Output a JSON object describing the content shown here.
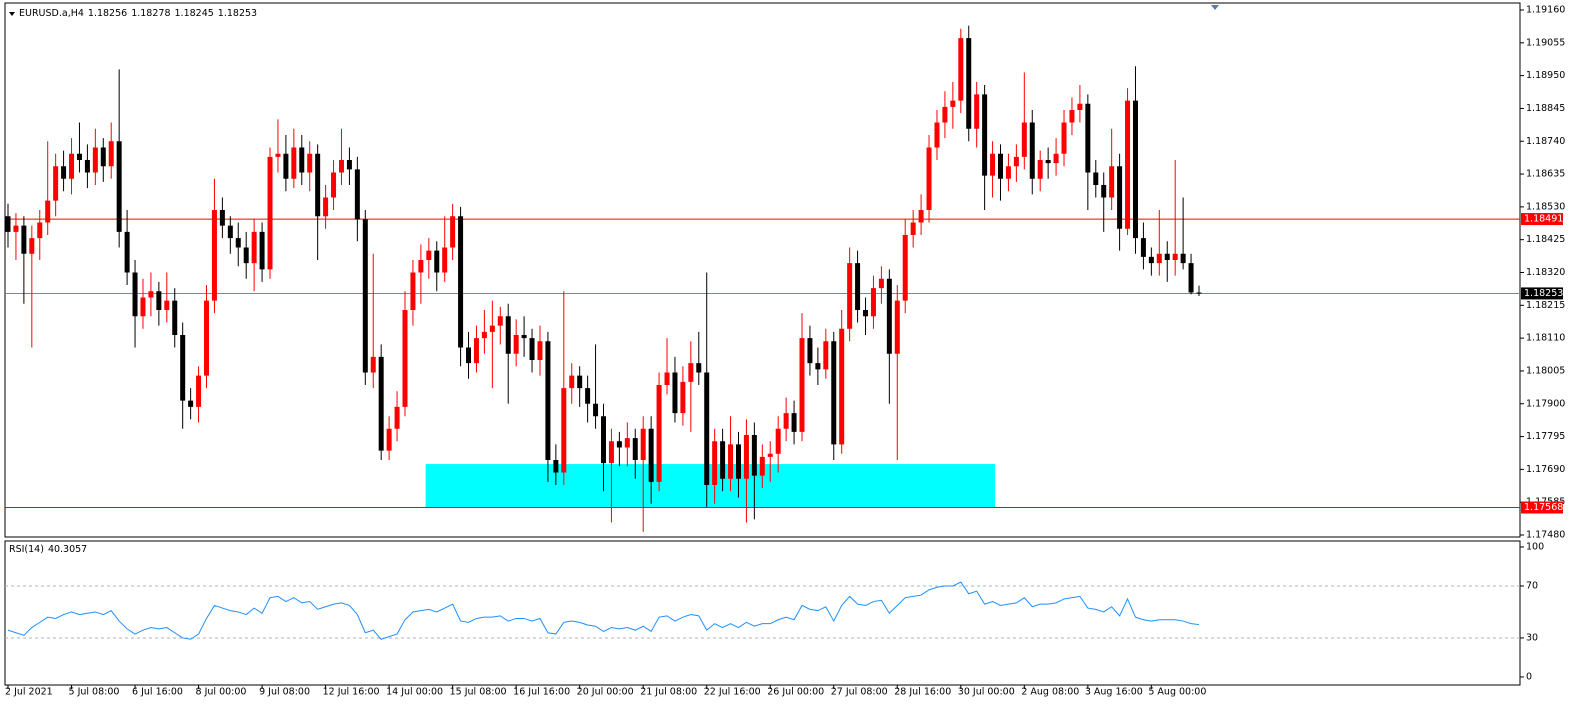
{
  "chart_data": {
    "type": "candlestick",
    "symbol": "EURUSD.a,H4",
    "up_color": "#ff0000",
    "down_color": "#000000",
    "candles": [
      [
        1.185,
        1.1854,
        1.184,
        1.1845
      ],
      [
        1.1845,
        1.1851,
        1.1836,
        1.1847
      ],
      [
        1.1847,
        1.185,
        1.1822,
        1.1838
      ],
      [
        1.1838,
        1.1847,
        1.1808,
        1.1843
      ],
      [
        1.1843,
        1.1852,
        1.1836,
        1.1848
      ],
      [
        1.1848,
        1.1874,
        1.1844,
        1.1855
      ],
      [
        1.1855,
        1.187,
        1.185,
        1.1866
      ],
      [
        1.1866,
        1.1871,
        1.1858,
        1.1862
      ],
      [
        1.1862,
        1.1875,
        1.1857,
        1.187
      ],
      [
        1.187,
        1.188,
        1.1864,
        1.1868
      ],
      [
        1.1868,
        1.1873,
        1.1859,
        1.1864
      ],
      [
        1.1864,
        1.1878,
        1.186,
        1.1872
      ],
      [
        1.1872,
        1.1875,
        1.1861,
        1.1866
      ],
      [
        1.1866,
        1.188,
        1.1862,
        1.1874
      ],
      [
        1.1874,
        1.1897,
        1.184,
        1.1845
      ],
      [
        1.1845,
        1.1852,
        1.1828,
        1.1832
      ],
      [
        1.1832,
        1.1836,
        1.1808,
        1.1818
      ],
      [
        1.1818,
        1.183,
        1.1814,
        1.1824
      ],
      [
        1.1824,
        1.1832,
        1.1818,
        1.1826
      ],
      [
        1.1826,
        1.1829,
        1.1815,
        1.182
      ],
      [
        1.182,
        1.1832,
        1.1816,
        1.1823
      ],
      [
        1.1823,
        1.1827,
        1.1808,
        1.1812
      ],
      [
        1.1812,
        1.1816,
        1.1782,
        1.1791
      ],
      [
        1.1791,
        1.1795,
        1.1785,
        1.1789
      ],
      [
        1.1789,
        1.1802,
        1.1784,
        1.1799
      ],
      [
        1.1799,
        1.1828,
        1.1795,
        1.1823
      ],
      [
        1.1823,
        1.1862,
        1.1819,
        1.1852
      ],
      [
        1.1852,
        1.1856,
        1.1843,
        1.1847
      ],
      [
        1.1847,
        1.185,
        1.1838,
        1.1843
      ],
      [
        1.1843,
        1.1848,
        1.1834,
        1.184
      ],
      [
        1.184,
        1.1845,
        1.183,
        1.1835
      ],
      [
        1.1835,
        1.1849,
        1.1826,
        1.1845
      ],
      [
        1.1845,
        1.1848,
        1.1829,
        1.1833
      ],
      [
        1.1833,
        1.1872,
        1.183,
        1.1869
      ],
      [
        1.1869,
        1.1881,
        1.1864,
        1.187
      ],
      [
        1.187,
        1.1876,
        1.1858,
        1.1862
      ],
      [
        1.1862,
        1.1878,
        1.1859,
        1.1872
      ],
      [
        1.1872,
        1.1876,
        1.186,
        1.1864
      ],
      [
        1.1864,
        1.1874,
        1.1858,
        1.187
      ],
      [
        1.187,
        1.1873,
        1.1836,
        1.185
      ],
      [
        1.185,
        1.186,
        1.1846,
        1.1856
      ],
      [
        1.1856,
        1.1868,
        1.1852,
        1.1864
      ],
      [
        1.1864,
        1.1878,
        1.186,
        1.1868
      ],
      [
        1.1868,
        1.1872,
        1.186,
        1.1865
      ],
      [
        1.1865,
        1.1869,
        1.1842,
        1.1849
      ],
      [
        1.1849,
        1.1852,
        1.1796,
        1.18
      ],
      [
        1.18,
        1.1838,
        1.1795,
        1.1805
      ],
      [
        1.1805,
        1.1809,
        1.1772,
        1.1775
      ],
      [
        1.1775,
        1.1786,
        1.1772,
        1.1782
      ],
      [
        1.1782,
        1.1794,
        1.1778,
        1.1789
      ],
      [
        1.1789,
        1.1826,
        1.1786,
        1.182
      ],
      [
        1.182,
        1.1836,
        1.1815,
        1.1832
      ],
      [
        1.1832,
        1.1841,
        1.1822,
        1.1836
      ],
      [
        1.1836,
        1.1843,
        1.183,
        1.1839
      ],
      [
        1.1839,
        1.1842,
        1.1826,
        1.1832
      ],
      [
        1.1832,
        1.185,
        1.1829,
        1.184
      ],
      [
        1.184,
        1.1854,
        1.1836,
        1.185
      ],
      [
        1.185,
        1.1853,
        1.1802,
        1.1808
      ],
      [
        1.1808,
        1.1813,
        1.1798,
        1.1803
      ],
      [
        1.1803,
        1.1815,
        1.18,
        1.1811
      ],
      [
        1.1811,
        1.182,
        1.1806,
        1.1813
      ],
      [
        1.1813,
        1.1823,
        1.1795,
        1.1815
      ],
      [
        1.1815,
        1.1821,
        1.1809,
        1.1818
      ],
      [
        1.1818,
        1.1822,
        1.179,
        1.1806
      ],
      [
        1.1806,
        1.1817,
        1.1802,
        1.1812
      ],
      [
        1.1812,
        1.1818,
        1.1805,
        1.1811
      ],
      [
        1.1811,
        1.1814,
        1.18,
        1.1804
      ],
      [
        1.1804,
        1.1815,
        1.1799,
        1.181
      ],
      [
        1.181,
        1.1813,
        1.1765,
        1.1772
      ],
      [
        1.1772,
        1.1777,
        1.1764,
        1.1768
      ],
      [
        1.1768,
        1.1826,
        1.1764,
        1.1795
      ],
      [
        1.1795,
        1.1803,
        1.179,
        1.1799
      ],
      [
        1.1799,
        1.1802,
        1.1789,
        1.1795
      ],
      [
        1.1795,
        1.1799,
        1.1784,
        1.179
      ],
      [
        1.179,
        1.1809,
        1.1782,
        1.1786
      ],
      [
        1.1786,
        1.179,
        1.1762,
        1.1771
      ],
      [
        1.1771,
        1.1782,
        1.1752,
        1.1778
      ],
      [
        1.1778,
        1.1781,
        1.177,
        1.1776
      ],
      [
        1.1776,
        1.1784,
        1.177,
        1.1779
      ],
      [
        1.1779,
        1.1782,
        1.1766,
        1.1772
      ],
      [
        1.1772,
        1.1786,
        1.1749,
        1.1782
      ],
      [
        1.1782,
        1.1786,
        1.1758,
        1.1765
      ],
      [
        1.1765,
        1.18,
        1.1762,
        1.1796
      ],
      [
        1.1796,
        1.1811,
        1.1793,
        1.18
      ],
      [
        1.18,
        1.1805,
        1.1784,
        1.1787
      ],
      [
        1.1787,
        1.1802,
        1.1783,
        1.1797
      ],
      [
        1.1797,
        1.181,
        1.1781,
        1.1803
      ],
      [
        1.1803,
        1.1813,
        1.1796,
        1.18
      ],
      [
        1.18,
        1.1832,
        1.1757,
        1.1764
      ],
      [
        1.1764,
        1.1782,
        1.1758,
        1.1778
      ],
      [
        1.1778,
        1.1782,
        1.1762,
        1.1766
      ],
      [
        1.1766,
        1.1786,
        1.1762,
        1.1777
      ],
      [
        1.1777,
        1.1781,
        1.176,
        1.1766
      ],
      [
        1.1766,
        1.1785,
        1.1752,
        1.178
      ],
      [
        1.178,
        1.1784,
        1.1753,
        1.1767
      ],
      [
        1.1767,
        1.1777,
        1.1763,
        1.1773
      ],
      [
        1.1773,
        1.1778,
        1.1765,
        1.1774
      ],
      [
        1.1774,
        1.1786,
        1.1768,
        1.1782
      ],
      [
        1.1782,
        1.1792,
        1.1778,
        1.1787
      ],
      [
        1.1787,
        1.1791,
        1.1777,
        1.1781
      ],
      [
        1.1781,
        1.1819,
        1.1778,
        1.1811
      ],
      [
        1.1811,
        1.1815,
        1.1799,
        1.1803
      ],
      [
        1.1803,
        1.1808,
        1.1796,
        1.1801
      ],
      [
        1.1801,
        1.1814,
        1.1798,
        1.181
      ],
      [
        1.181,
        1.1813,
        1.1772,
        1.1777
      ],
      [
        1.1777,
        1.182,
        1.1774,
        1.1814
      ],
      [
        1.1814,
        1.184,
        1.181,
        1.1835
      ],
      [
        1.1835,
        1.1839,
        1.1816,
        1.182
      ],
      [
        1.182,
        1.1824,
        1.1812,
        1.1818
      ],
      [
        1.1818,
        1.1831,
        1.1814,
        1.1827
      ],
      [
        1.1827,
        1.1834,
        1.1822,
        1.183
      ],
      [
        1.183,
        1.1833,
        1.179,
        1.1806
      ],
      [
        1.1806,
        1.1828,
        1.1772,
        1.1823
      ],
      [
        1.1823,
        1.1849,
        1.1819,
        1.1844
      ],
      [
        1.1844,
        1.1852,
        1.184,
        1.1848
      ],
      [
        1.1848,
        1.1857,
        1.1844,
        1.1852
      ],
      [
        1.1852,
        1.1876,
        1.1848,
        1.1872
      ],
      [
        1.1872,
        1.1884,
        1.1868,
        1.188
      ],
      [
        1.188,
        1.189,
        1.1875,
        1.1885
      ],
      [
        1.1885,
        1.1893,
        1.1878,
        1.1887
      ],
      [
        1.1887,
        1.191,
        1.1883,
        1.1907
      ],
      [
        1.1907,
        1.1911,
        1.1874,
        1.1878
      ],
      [
        1.1878,
        1.1893,
        1.1872,
        1.1889
      ],
      [
        1.1889,
        1.1892,
        1.1852,
        1.1863
      ],
      [
        1.1863,
        1.1874,
        1.1856,
        1.187
      ],
      [
        1.187,
        1.1873,
        1.1855,
        1.1862
      ],
      [
        1.1862,
        1.187,
        1.1858,
        1.1866
      ],
      [
        1.1866,
        1.1873,
        1.1861,
        1.1869
      ],
      [
        1.1869,
        1.1896,
        1.1865,
        1.188
      ],
      [
        1.188,
        1.1884,
        1.1857,
        1.1862
      ],
      [
        1.1862,
        1.1871,
        1.1858,
        1.1868
      ],
      [
        1.1868,
        1.1872,
        1.1862,
        1.1867
      ],
      [
        1.1867,
        1.1875,
        1.1863,
        1.187
      ],
      [
        1.187,
        1.1884,
        1.1866,
        1.188
      ],
      [
        1.188,
        1.1888,
        1.1876,
        1.1884
      ],
      [
        1.1884,
        1.1892,
        1.188,
        1.1886
      ],
      [
        1.1886,
        1.1889,
        1.1852,
        1.1864
      ],
      [
        1.1864,
        1.1868,
        1.1856,
        1.186
      ],
      [
        1.186,
        1.1864,
        1.1845,
        1.1856
      ],
      [
        1.1856,
        1.1878,
        1.1852,
        1.1866
      ],
      [
        1.1866,
        1.187,
        1.1839,
        1.1846
      ],
      [
        1.1846,
        1.1891,
        1.1844,
        1.1887
      ],
      [
        1.1887,
        1.1898,
        1.1838,
        1.1843
      ],
      [
        1.1843,
        1.1848,
        1.1833,
        1.1837
      ],
      [
        1.1837,
        1.184,
        1.1831,
        1.1835
      ],
      [
        1.1835,
        1.1852,
        1.1831,
        1.1838
      ],
      [
        1.1838,
        1.1842,
        1.1829,
        1.1836
      ],
      [
        1.1836,
        1.1868,
        1.1831,
        1.1838
      ],
      [
        1.1838,
        1.1856,
        1.1833,
        1.1835
      ],
      [
        1.1835,
        1.1838,
        1.1825,
        1.18256
      ],
      [
        1.18256,
        1.18278,
        1.18245,
        1.18253
      ]
    ],
    "ylim": [
      1.174736,
      1.19176
    ],
    "yticks": [
      {
        "value": 1.1748,
        "label": "1.17480"
      },
      {
        "value": 1.17585,
        "label": "1.17585"
      },
      {
        "value": 1.1769,
        "label": "1.17690"
      },
      {
        "value": 1.17795,
        "label": "1.17795"
      },
      {
        "value": 1.179,
        "label": "1.17900"
      },
      {
        "value": 1.18005,
        "label": "1.18005"
      },
      {
        "value": 1.1811,
        "label": "1.18110"
      },
      {
        "value": 1.18215,
        "label": "1.18215"
      },
      {
        "value": 1.1832,
        "label": "1.18320"
      },
      {
        "value": 1.18425,
        "label": "1.18425"
      },
      {
        "value": 1.1853,
        "label": "1.18530"
      },
      {
        "value": 1.18635,
        "label": "1.18635"
      },
      {
        "value": 1.1874,
        "label": "1.18740"
      },
      {
        "value": 1.18845,
        "label": "1.18845"
      },
      {
        "value": 1.1895,
        "label": "1.18950"
      },
      {
        "value": 1.19055,
        "label": "1.19055"
      },
      {
        "value": 1.1916,
        "label": "1.19160"
      }
    ],
    "xticks": [
      {
        "value": 0,
        "label": "2 Jul 2021"
      },
      {
        "value": 8,
        "label": "5 Jul 08:00"
      },
      {
        "value": 16,
        "label": "6 Jul 16:00"
      },
      {
        "value": 24,
        "label": "8 Jul 00:00"
      },
      {
        "value": 32,
        "label": "9 Jul 08:00"
      },
      {
        "value": 40,
        "label": "12 Jul 16:00"
      },
      {
        "value": 48,
        "label": "14 Jul 00:00"
      },
      {
        "value": 56,
        "label": "15 Jul 08:00"
      },
      {
        "value": 64,
        "label": "16 Jul 16:00"
      },
      {
        "value": 72,
        "label": "20 Jul 00:00"
      },
      {
        "value": 80,
        "label": "21 Jul 08:00"
      },
      {
        "value": 88,
        "label": "22 Jul 16:00"
      },
      {
        "value": 96,
        "label": "26 Jul 00:00"
      },
      {
        "value": 104,
        "label": "27 Jul 08:00"
      },
      {
        "value": 112,
        "label": "28 Jul 16:00"
      },
      {
        "value": 120,
        "label": "30 Jul 00:00"
      },
      {
        "value": 128,
        "label": "2 Aug 08:00"
      },
      {
        "value": 136,
        "label": "3 Aug 16:00"
      },
      {
        "value": 144,
        "label": "5 Aug 00:00"
      }
    ],
    "hlines": [
      {
        "value": 1.18491,
        "color": "#ff0000"
      },
      {
        "value": 1.17568,
        "color": "#ff0000"
      }
    ],
    "bid_color": "#778899",
    "rect": {
      "x": [
        52.6,
        124.3
      ],
      "y": [
        1.17568,
        1.17707
      ],
      "color": "#00ffff"
    },
    "rsi": {
      "label": "RSI(14)",
      "color": "#1e90ff",
      "ylim": [
        -6.2,
        104.6
      ],
      "yticks": [
        0,
        30,
        70,
        100
      ],
      "levels": [
        30,
        70
      ],
      "values": [
        36,
        34,
        32,
        38,
        42,
        46,
        45,
        48,
        50,
        48,
        49,
        50,
        48,
        51,
        43,
        37,
        33,
        36,
        38,
        37,
        38,
        34,
        30,
        29,
        33,
        45,
        55,
        53,
        51,
        50,
        48,
        53,
        49,
        61,
        62,
        58,
        61,
        57,
        58,
        52,
        54,
        56,
        57,
        55,
        48,
        34,
        36,
        29,
        31,
        33,
        44,
        50,
        51,
        52,
        50,
        53,
        56,
        43,
        42,
        45,
        46,
        46,
        47,
        43,
        45,
        45,
        43,
        45,
        34,
        33,
        42,
        43,
        42,
        40,
        39,
        35,
        38,
        37,
        38,
        36,
        39,
        35,
        46,
        47,
        43,
        46,
        48,
        47,
        36,
        41,
        38,
        41,
        38,
        42,
        39,
        41,
        41,
        44,
        46,
        44,
        55,
        52,
        51,
        54,
        43,
        55,
        62,
        56,
        55,
        58,
        59,
        49,
        55,
        61,
        62,
        63,
        67,
        69,
        70,
        70,
        73,
        64,
        66,
        56,
        58,
        55,
        56,
        57,
        61,
        54,
        56,
        56,
        57,
        60,
        61,
        62,
        53,
        52,
        50,
        54,
        47,
        60,
        46,
        44,
        43,
        44,
        44,
        44,
        43,
        41,
        40.3057
      ]
    }
  }
}
